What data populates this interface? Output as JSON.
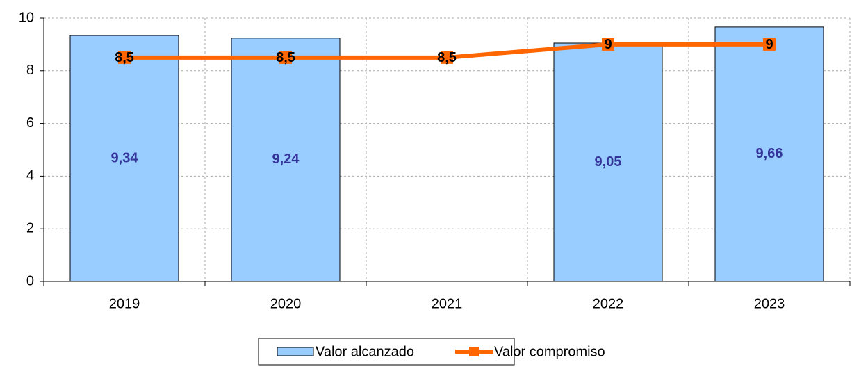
{
  "chart_data": {
    "type": "bar",
    "categories": [
      "2019",
      "2020",
      "2021",
      "2022",
      "2023"
    ],
    "series": [
      {
        "name": "Valor alcanzado",
        "type": "bar",
        "color": "#99ccff",
        "values": [
          9.34,
          9.24,
          null,
          9.05,
          9.66
        ],
        "value_labels": [
          "9,34",
          "9,24",
          null,
          "9,05",
          "9,66"
        ]
      },
      {
        "name": "Valor compromiso",
        "type": "line",
        "color": "#ff6600",
        "values": [
          8.5,
          8.5,
          8.5,
          9,
          9
        ],
        "value_labels": [
          "8,5",
          "8,5",
          "8,5",
          "9",
          "9"
        ]
      }
    ],
    "ylim": [
      0,
      10
    ],
    "yticks": [
      0,
      2,
      4,
      6,
      8,
      10
    ],
    "grid": true,
    "legend": "bottom"
  }
}
